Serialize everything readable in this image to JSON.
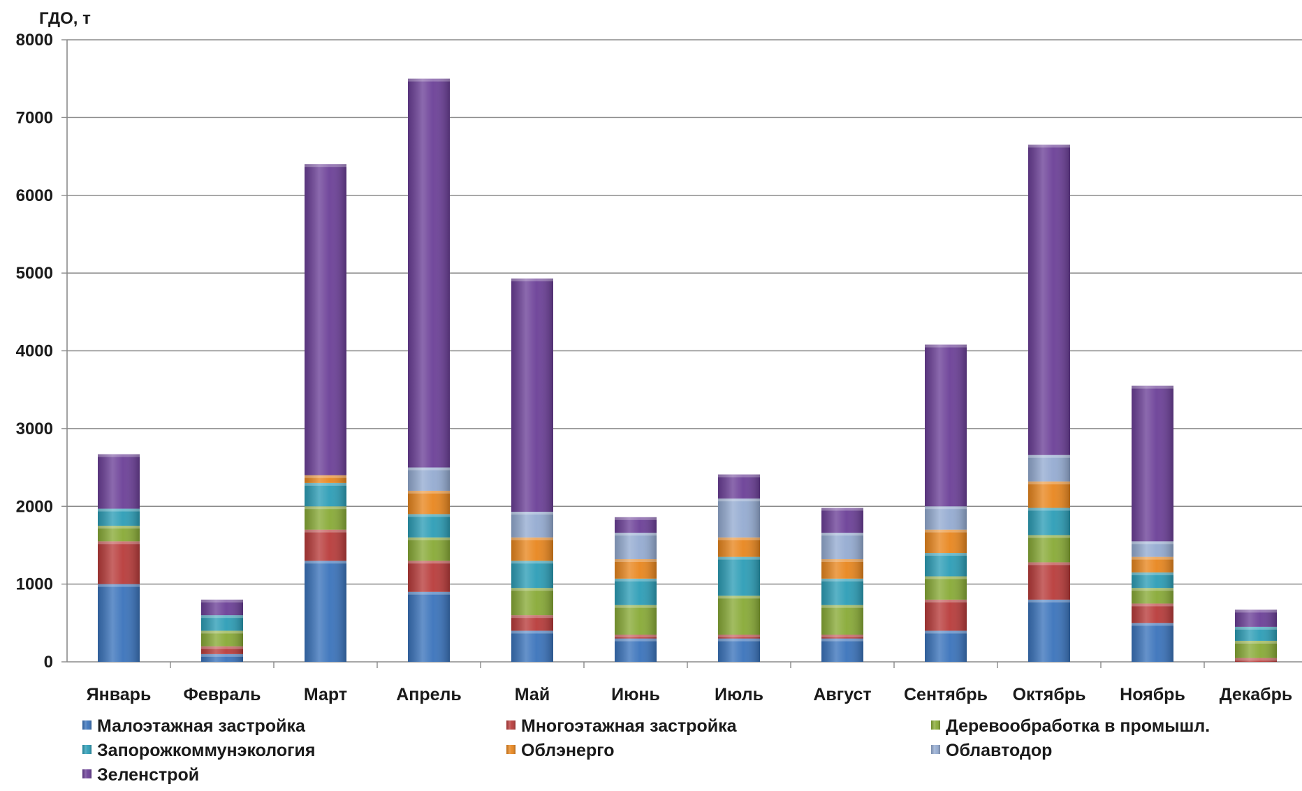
{
  "chart_data": {
    "type": "bar",
    "stacked": true,
    "ylabel": "ГДО, т",
    "ylim": [
      0,
      8000
    ],
    "yticks": [
      0,
      1000,
      2000,
      3000,
      4000,
      5000,
      6000,
      7000,
      8000
    ],
    "grid": true,
    "legend_position": "bottom",
    "categories": [
      "Январь",
      "Февраль",
      "Март",
      "Апрель",
      "Май",
      "Июнь",
      "Июль",
      "Август",
      "Сентябрь",
      "Октябрь",
      "Ноябрь",
      "Декабрь"
    ],
    "series": [
      {
        "name": "Малоэтажная застройка",
        "color": "#3a73bb",
        "values": [
          1000,
          100,
          1300,
          900,
          400,
          300,
          300,
          300,
          400,
          800,
          500,
          0
        ]
      },
      {
        "name": "Многоэтажная застройка",
        "color": "#b83b3a",
        "values": [
          550,
          100,
          400,
          400,
          200,
          50,
          50,
          50,
          400,
          480,
          250,
          50
        ]
      },
      {
        "name": "Деревообработка в промышл.",
        "color": "#88aa36",
        "values": [
          200,
          200,
          300,
          300,
          350,
          380,
          500,
          380,
          300,
          350,
          200,
          220
        ]
      },
      {
        "name": "Запорожкоммунэкология",
        "color": "#2c9db6",
        "values": [
          220,
          200,
          300,
          300,
          350,
          340,
          500,
          340,
          300,
          350,
          200,
          180
        ]
      },
      {
        "name": "Облэнерго",
        "color": "#e8861e",
        "values": [
          0,
          0,
          100,
          300,
          300,
          250,
          250,
          250,
          300,
          340,
          200,
          0
        ]
      },
      {
        "name": "Облавтодор",
        "color": "#94abd1",
        "values": [
          0,
          0,
          0,
          300,
          330,
          340,
          500,
          340,
          300,
          340,
          200,
          0
        ]
      },
      {
        "name": "Зеленстрой",
        "color": "#6b3f97",
        "values": [
          700,
          200,
          4000,
          5000,
          3000,
          200,
          310,
          320,
          2080,
          3990,
          2000,
          220
        ]
      }
    ]
  }
}
